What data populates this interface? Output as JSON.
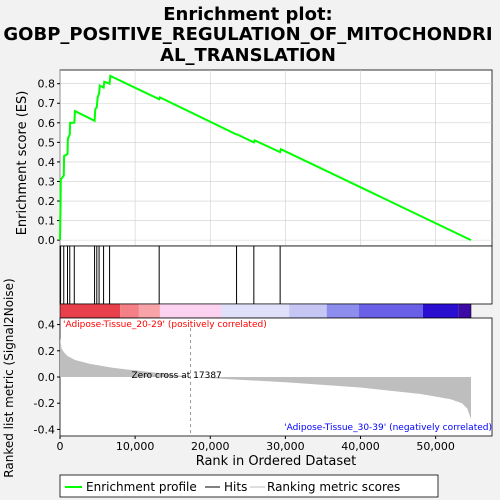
{
  "title_lines": [
    "Enrichment plot:",
    "GOBP_POSITIVE_REGULATION_OF_MITOCHONDRI",
    "AL_TRANSLATION"
  ],
  "colors": {
    "es_line": "#00ff00",
    "hits": "#000000",
    "metric_fill": "#bebebe",
    "positive_label": "#ff0000",
    "negative_label": "#0000ff",
    "zero_line": "#808080",
    "grid": "#cfcfcf"
  },
  "legend": {
    "items": [
      {
        "label": "Enrichment profile",
        "icon": "green-line-icon"
      },
      {
        "label": "Hits",
        "icon": "black-line-icon"
      },
      {
        "label": "Ranking metric scores",
        "icon": "gray-line-icon"
      }
    ]
  },
  "annotations": {
    "positive": "'Adipose-Tissue_20-29' (positively correlated)",
    "negative": "'Adipose-Tissue_30-39' (negatively correlated)",
    "zero_cross": "Zero cross at 17387"
  },
  "chart_data": [
    {
      "type": "line",
      "name": "enrichment-score",
      "ylabel": "Enrichment score (ES)",
      "ylim": [
        -0.03,
        0.87
      ],
      "yticks": [
        0.0,
        0.1,
        0.2,
        0.3,
        0.4,
        0.5,
        0.6,
        0.7,
        0.8
      ],
      "ytick_labels": [
        "0.0",
        "0.1",
        "0.2",
        "0.3",
        "0.4",
        "0.5",
        "0.6",
        "0.7",
        "0.8"
      ],
      "grid": true,
      "x": [
        0,
        80,
        100,
        500,
        550,
        1000,
        1050,
        1300,
        1350,
        1900,
        2000,
        4600,
        4700,
        4900,
        5000,
        5200,
        5300,
        5800,
        5900,
        6600,
        6700,
        13200,
        13300,
        23500,
        23600,
        25800,
        25900,
        29300,
        29400,
        54700
      ],
      "y": [
        0.0,
        0.19,
        0.31,
        0.33,
        0.43,
        0.44,
        0.52,
        0.54,
        0.6,
        0.6,
        0.66,
        0.61,
        0.67,
        0.68,
        0.73,
        0.75,
        0.79,
        0.78,
        0.81,
        0.8,
        0.84,
        0.72,
        0.73,
        0.54,
        0.54,
        0.5,
        0.51,
        0.45,
        0.465,
        0.0
      ]
    },
    {
      "type": "hits",
      "name": "gene-hits",
      "positions": [
        80,
        500,
        1000,
        1300,
        1900,
        4600,
        4900,
        5200,
        5800,
        6600,
        13200,
        23500,
        25800,
        29300
      ]
    },
    {
      "type": "area",
      "name": "ranked-list-metric",
      "xlabel": "Rank in Ordered Dataset",
      "ylabel": "Ranked list metric (Signal2Noise)",
      "xlim": [
        0,
        57500
      ],
      "ylim": [
        -0.45,
        0.45
      ],
      "xticks": [
        0,
        10000,
        20000,
        30000,
        40000,
        50000
      ],
      "xtick_labels": [
        "0",
        "10,000",
        "20,000",
        "30,000",
        "40,000",
        "50,000"
      ],
      "yticks": [
        -0.4,
        -0.2,
        0.0,
        0.2,
        0.4
      ],
      "ytick_labels": [
        "-0.4",
        "-0.2",
        "0.0",
        "0.2",
        "0.4"
      ],
      "zero_cross": 17387,
      "n_genes": 54700,
      "x": [
        0,
        200,
        500,
        1000,
        2000,
        4000,
        7000,
        10000,
        14000,
        17387,
        22000,
        30000,
        40000,
        48000,
        52000,
        53500,
        54200,
        54700
      ],
      "y": [
        0.3,
        0.22,
        0.19,
        0.16,
        0.13,
        0.1,
        0.07,
        0.05,
        0.025,
        0.0,
        -0.015,
        -0.04,
        -0.08,
        -0.13,
        -0.17,
        -0.2,
        -0.24,
        -0.32
      ]
    }
  ]
}
